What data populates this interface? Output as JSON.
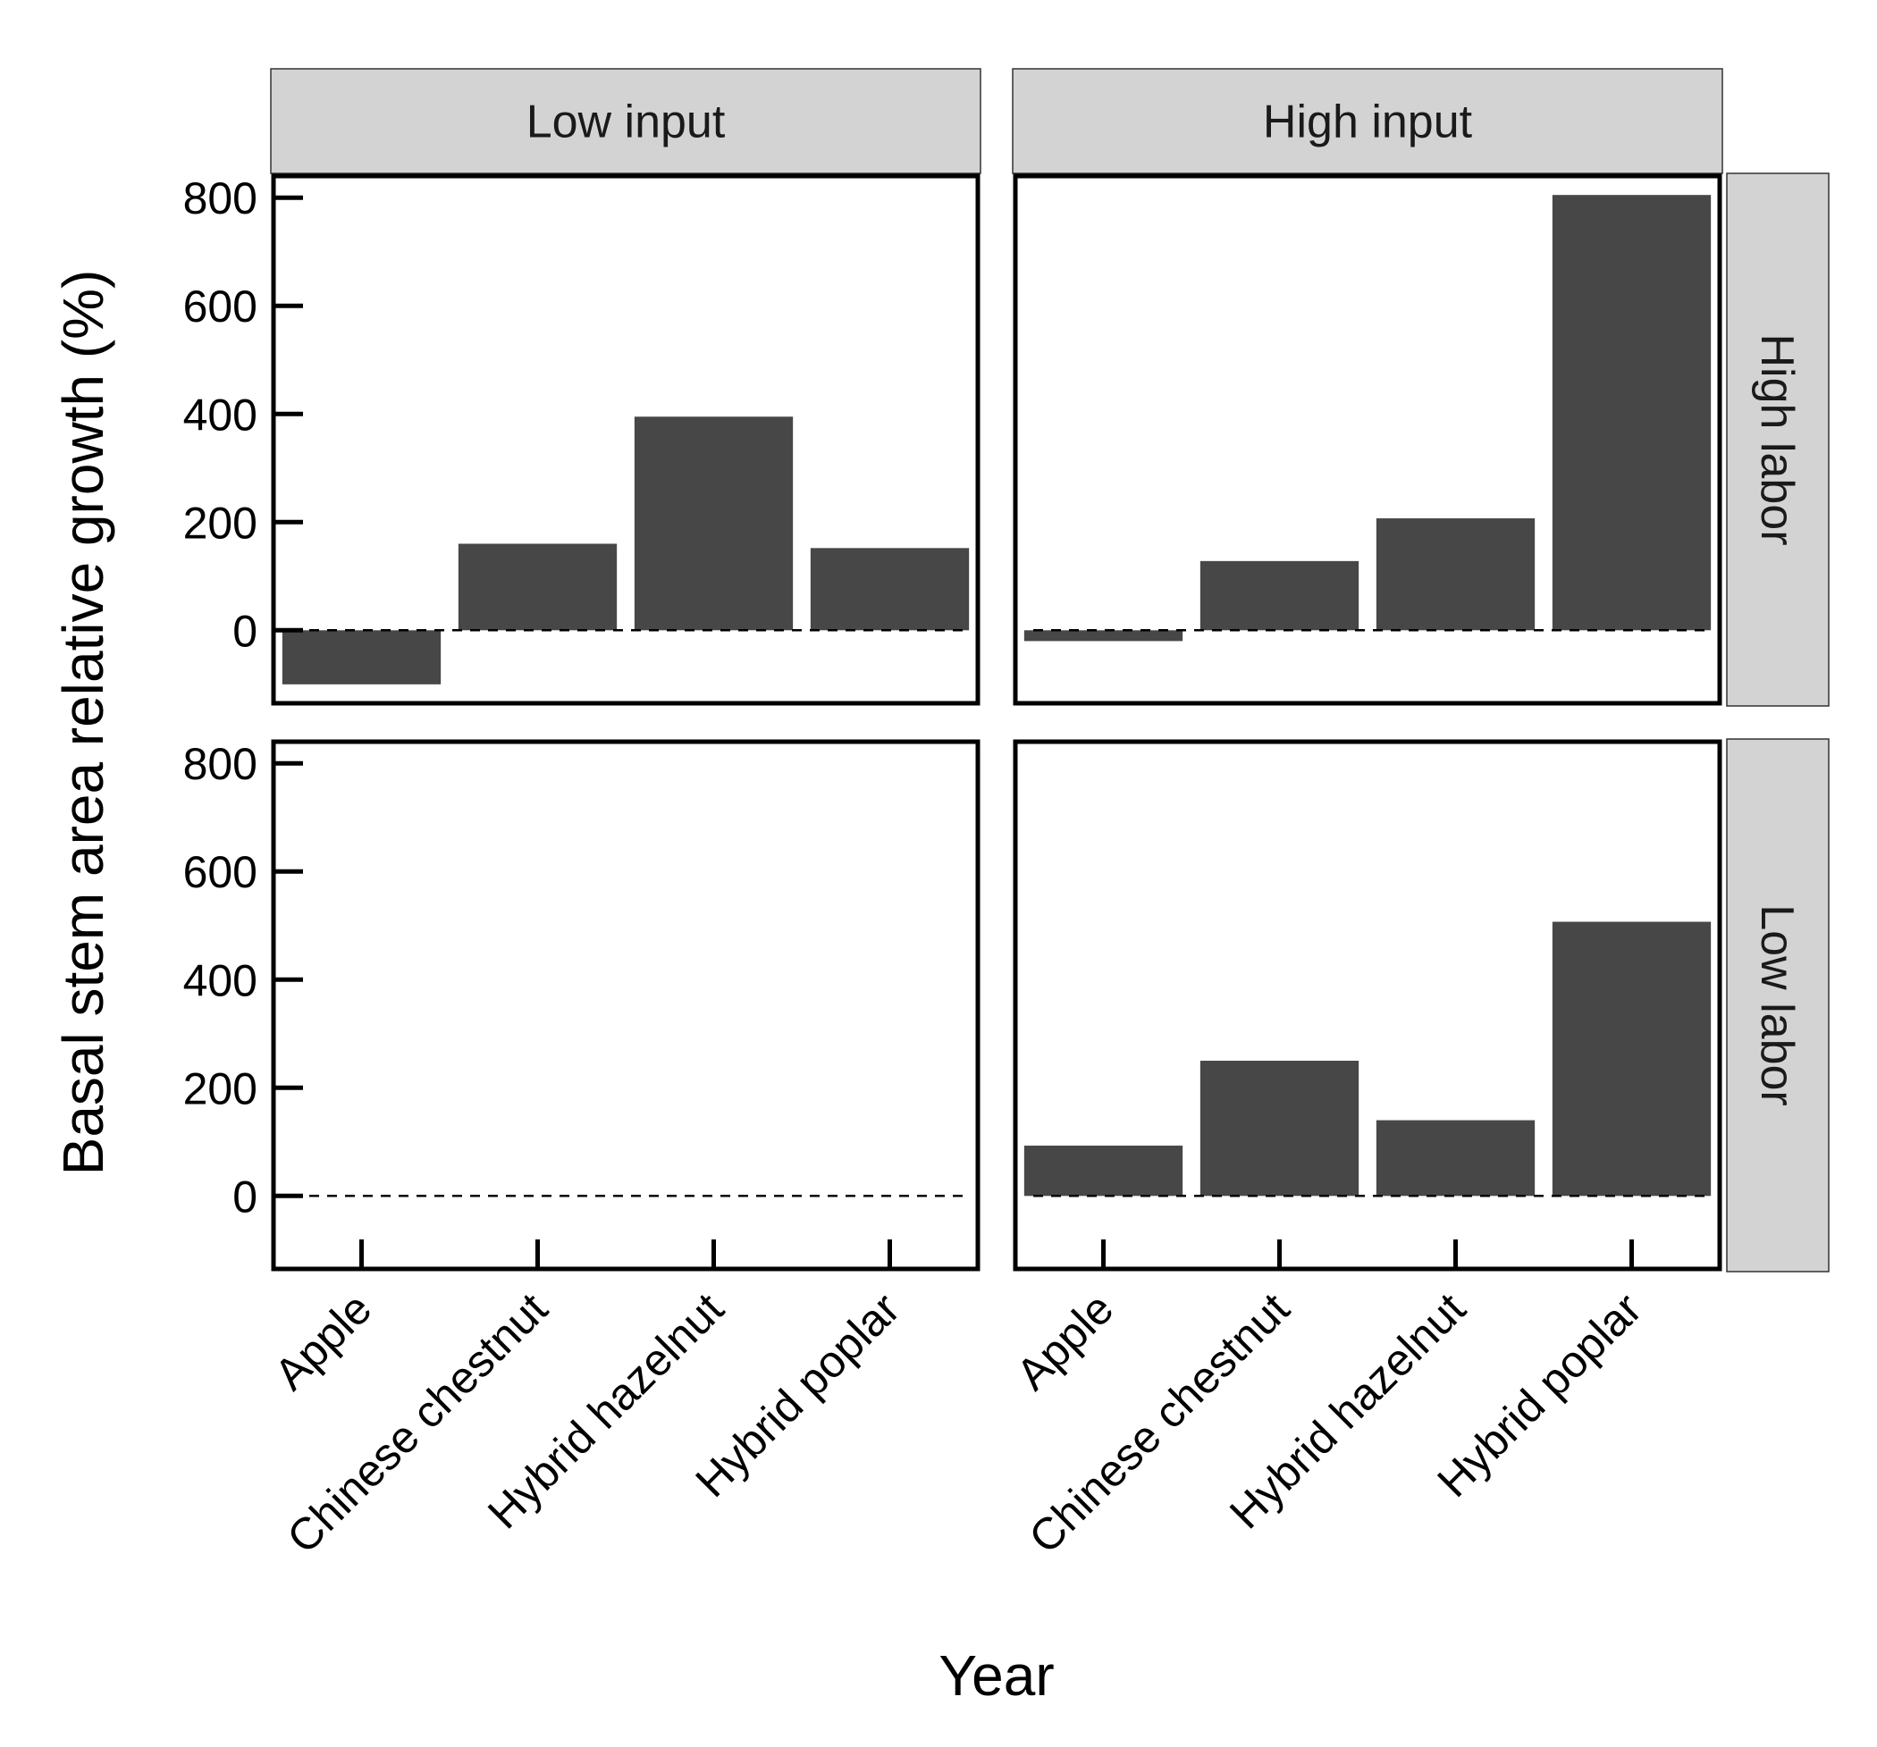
{
  "chart_data": {
    "type": "bar",
    "facet_layout": "grid",
    "xlabel": "Year",
    "ylabel": "Basal stem area relative growth (%)",
    "ylim": [
      -135,
      840
    ],
    "yticks": [
      0,
      200,
      400,
      600,
      800
    ],
    "categories": [
      "Apple",
      "Chinese chestnut",
      "Hybrid hazelnut",
      "Hybrid poplar"
    ],
    "column_facets": [
      "Low input",
      "High input"
    ],
    "row_facets": [
      "High labor",
      "Low labor"
    ],
    "reference_line": 0,
    "bar_color": "#474747",
    "panels": [
      {
        "row": "High labor",
        "column": "Low input",
        "values": [
          -100,
          160,
          395,
          152
        ]
      },
      {
        "row": "High labor",
        "column": "High input",
        "values": [
          -20,
          128,
          207,
          805
        ]
      },
      {
        "row": "Low labor",
        "column": "Low input",
        "values": []
      },
      {
        "row": "Low labor",
        "column": "High input",
        "values": [
          93,
          250,
          140,
          507
        ]
      }
    ]
  }
}
